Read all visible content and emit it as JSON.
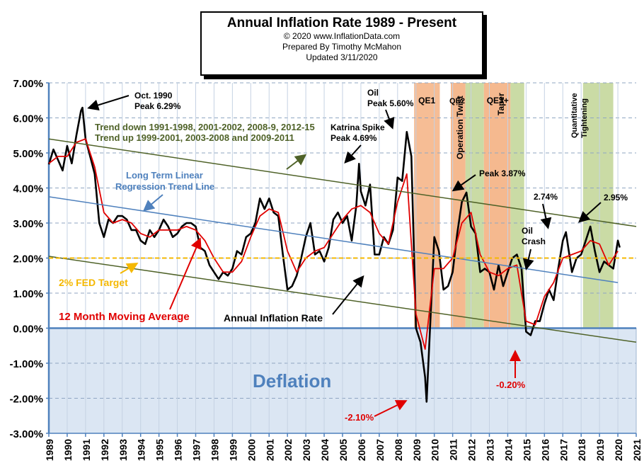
{
  "chart_data": {
    "type": "line",
    "title": "Annual  Inflation Rate 1989 - Present",
    "subtitle_lines": [
      "© 2020  www.InflationData.com",
      "Prepared  By Timothy  McMahon",
      "Updated  3/11/2020"
    ],
    "x_ticks": [
      "1989",
      "1990",
      "1991",
      "1992",
      "1993",
      "1994",
      "1995",
      "1996",
      "1997",
      "1998",
      "1999",
      "2000",
      "2001",
      "2002",
      "2003",
      "2004",
      "2005",
      "2006",
      "2007",
      "2008",
      "2009",
      "2010",
      "2011",
      "2012",
      "2013",
      "2014",
      "2015",
      "2016",
      "2017",
      "2018",
      "2019",
      "2020",
      "2021"
    ],
    "y_ticks": [
      "7.00%",
      "6.00%",
      "5.00%",
      "4.00%",
      "3.00%",
      "2.00%",
      "1.00%",
      "0.00%",
      "-1.00%",
      "-2.00%",
      "-3.00%"
    ],
    "xlim": [
      1989,
      2021
    ],
    "ylim": [
      -3,
      7
    ],
    "grid": true,
    "series": [
      {
        "name": "Annual Inflation Rate",
        "color": "#000000",
        "x": [
          1989.0,
          1989.25,
          1989.5,
          1989.75,
          1990.0,
          1990.25,
          1990.5,
          1990.75,
          1990.83,
          1991.0,
          1991.25,
          1991.5,
          1991.75,
          1992.0,
          1992.25,
          1992.5,
          1992.75,
          1993.0,
          1993.25,
          1993.5,
          1993.75,
          1994.0,
          1994.25,
          1994.5,
          1994.75,
          1995.0,
          1995.25,
          1995.5,
          1995.75,
          1996.0,
          1996.25,
          1996.5,
          1996.75,
          1997.0,
          1997.25,
          1997.5,
          1997.75,
          1998.0,
          1998.25,
          1998.5,
          1998.75,
          1999.0,
          1999.25,
          1999.5,
          1999.75,
          2000.0,
          2000.25,
          2000.5,
          2000.75,
          2001.0,
          2001.25,
          2001.5,
          2001.75,
          2002.0,
          2002.25,
          2002.5,
          2002.75,
          2003.0,
          2003.25,
          2003.5,
          2003.75,
          2004.0,
          2004.25,
          2004.5,
          2004.75,
          2005.0,
          2005.25,
          2005.5,
          2005.75,
          2005.9,
          2006.0,
          2006.25,
          2006.5,
          2006.75,
          2007.0,
          2007.25,
          2007.5,
          2007.75,
          2008.0,
          2008.25,
          2008.5,
          2008.75,
          2009.0,
          2009.25,
          2009.5,
          2009.58,
          2009.75,
          2010.0,
          2010.25,
          2010.5,
          2010.75,
          2011.0,
          2011.25,
          2011.5,
          2011.75,
          2012.0,
          2012.25,
          2012.5,
          2012.75,
          2013.0,
          2013.25,
          2013.5,
          2013.75,
          2014.0,
          2014.25,
          2014.5,
          2014.75,
          2015.0,
          2015.25,
          2015.5,
          2015.75,
          2016.0,
          2016.25,
          2016.5,
          2016.75,
          2017.0,
          2017.17,
          2017.5,
          2017.75,
          2018.0,
          2018.25,
          2018.5,
          2018.75,
          2019.0,
          2019.25,
          2019.5,
          2019.75,
          2020.0,
          2020.1
        ],
        "values": [
          4.67,
          5.1,
          4.8,
          4.5,
          5.2,
          4.7,
          5.5,
          6.2,
          6.29,
          5.4,
          4.9,
          4.4,
          3.0,
          2.6,
          3.1,
          3.0,
          3.2,
          3.2,
          3.1,
          2.8,
          2.8,
          2.5,
          2.4,
          2.8,
          2.6,
          2.8,
          3.1,
          2.9,
          2.6,
          2.7,
          2.9,
          3.0,
          3.0,
          2.9,
          2.3,
          2.2,
          1.8,
          1.6,
          1.4,
          1.6,
          1.5,
          1.7,
          2.2,
          2.1,
          2.6,
          2.7,
          3.0,
          3.7,
          3.4,
          3.7,
          3.3,
          3.2,
          2.1,
          1.1,
          1.2,
          1.5,
          2.0,
          2.6,
          3.0,
          2.1,
          2.2,
          1.9,
          2.3,
          3.1,
          3.3,
          3.0,
          3.2,
          2.5,
          3.5,
          4.69,
          3.9,
          3.5,
          4.1,
          2.1,
          2.1,
          2.6,
          2.4,
          2.8,
          4.3,
          4.2,
          5.6,
          4.9,
          0.0,
          -0.4,
          -1.4,
          -2.1,
          -0.2,
          2.6,
          2.2,
          1.1,
          1.2,
          1.6,
          2.7,
          3.6,
          3.87,
          2.9,
          2.7,
          1.6,
          1.7,
          1.6,
          1.1,
          1.8,
          1.2,
          1.6,
          2.0,
          2.1,
          1.7,
          -0.1,
          -0.2,
          0.2,
          0.2,
          0.7,
          1.1,
          0.8,
          1.7,
          2.5,
          2.74,
          1.6,
          2.0,
          2.1,
          2.5,
          2.9,
          2.2,
          1.6,
          1.9,
          1.8,
          1.7,
          2.5,
          2.3
        ],
        "label_text": "Annual Inflation Rate"
      },
      {
        "name": "12 Month Moving Average",
        "color": "#e00000",
        "x": [
          1989.0,
          1989.5,
          1990.0,
          1990.5,
          1991.0,
          1991.5,
          1992.0,
          1992.5,
          1993.0,
          1993.5,
          1994.0,
          1994.5,
          1995.0,
          1995.5,
          1996.0,
          1996.5,
          1997.0,
          1997.5,
          1998.0,
          1998.5,
          1999.0,
          1999.5,
          2000.0,
          2000.5,
          2001.0,
          2001.5,
          2002.0,
          2002.5,
          2003.0,
          2003.5,
          2004.0,
          2004.5,
          2005.0,
          2005.5,
          2006.0,
          2006.5,
          2007.0,
          2007.5,
          2008.0,
          2008.5,
          2009.0,
          2009.5,
          2010.0,
          2010.5,
          2011.0,
          2011.5,
          2012.0,
          2012.5,
          2013.0,
          2013.5,
          2014.0,
          2014.5,
          2015.0,
          2015.5,
          2016.0,
          2016.5,
          2017.0,
          2017.5,
          2018.0,
          2018.5,
          2019.0,
          2019.5,
          2020.0
        ],
        "values": [
          4.7,
          4.9,
          4.9,
          5.3,
          5.4,
          4.6,
          3.3,
          3.0,
          3.1,
          3.0,
          2.7,
          2.6,
          2.8,
          2.8,
          2.8,
          2.9,
          2.8,
          2.5,
          2.0,
          1.6,
          1.6,
          1.9,
          2.6,
          3.2,
          3.4,
          3.3,
          2.2,
          1.6,
          2.0,
          2.2,
          2.3,
          2.7,
          3.1,
          3.4,
          3.5,
          3.3,
          2.7,
          2.4,
          3.6,
          4.4,
          0.4,
          -0.6,
          1.7,
          1.7,
          2.0,
          3.0,
          3.3,
          2.1,
          1.6,
          1.5,
          1.7,
          1.8,
          0.2,
          0.1,
          0.9,
          1.3,
          2.0,
          2.1,
          2.2,
          2.5,
          2.4,
          1.8,
          2.2
        ],
        "label_text": "12 Month Moving Average"
      },
      {
        "name": "Long Term Linear Regression Trend Line",
        "color": "#4f81bd",
        "x": [
          1989,
          2020
        ],
        "values": [
          3.75,
          1.3
        ],
        "label_text": "Long Term Linear Regression Trend Line"
      },
      {
        "name": "Upper Trend",
        "color": "#4f6228",
        "x": [
          1989,
          2021
        ],
        "values": [
          5.4,
          2.9
        ]
      },
      {
        "name": "Lower Trend",
        "color": "#4f6228",
        "x": [
          1989,
          2021
        ],
        "values": [
          2.05,
          -0.4
        ]
      },
      {
        "name": "2% FED Target",
        "color": "#f5b800",
        "x": [
          1989,
          2021
        ],
        "values": [
          2.0,
          2.0
        ],
        "label_text": "2% FED Target"
      }
    ],
    "shaded_regions": [
      {
        "label": "QE1",
        "x0": 2008.9,
        "x1": 2010.3,
        "color": "#f4b183"
      },
      {
        "label": "QE2",
        "x0": 2010.9,
        "x1": 2011.7,
        "color": "#f4b183"
      },
      {
        "label": "Operation Twist",
        "x0": 2011.7,
        "x1": 2012.7,
        "color": "#c4d79b"
      },
      {
        "label": "QE3+",
        "x0": 2012.7,
        "x1": 2014.15,
        "color": "#f4b183"
      },
      {
        "label": "Taper",
        "x0": 2014.15,
        "x1": 2014.9,
        "color": "#c4d79b"
      },
      {
        "label": "Quantitative Tightening",
        "x0": 2018.1,
        "x1": 2019.75,
        "color": "#c4d79b"
      }
    ],
    "deflation_label": "Deflation",
    "annotations": [
      {
        "lines": [
          "Oct. 1990",
          "Peak 6.29%"
        ],
        "color": "#000"
      },
      {
        "lines": [
          "Trend  down 1991-1998,  2001-2002,  2008-9,  2012-15",
          "Trend  up  1999-2001,  2003-2008  and 2009-2011"
        ],
        "color": "#4f6228"
      },
      {
        "lines": [
          "Oil",
          "Peak 5.60%"
        ],
        "color": "#000"
      },
      {
        "lines": [
          "Katrina Spike",
          "Peak 4.69%"
        ],
        "color": "#000"
      },
      {
        "lines": [
          "Peak 3.87%"
        ],
        "color": "#000"
      },
      {
        "lines": [
          "2.74%"
        ],
        "color": "#000"
      },
      {
        "lines": [
          "2.95%"
        ],
        "color": "#000"
      },
      {
        "lines": [
          "Oil",
          "Crash"
        ],
        "color": "#000"
      },
      {
        "lines": [
          "-0.20%"
        ],
        "color": "#e00000"
      },
      {
        "lines": [
          "-2.10%"
        ],
        "color": "#e00000"
      }
    ]
  }
}
